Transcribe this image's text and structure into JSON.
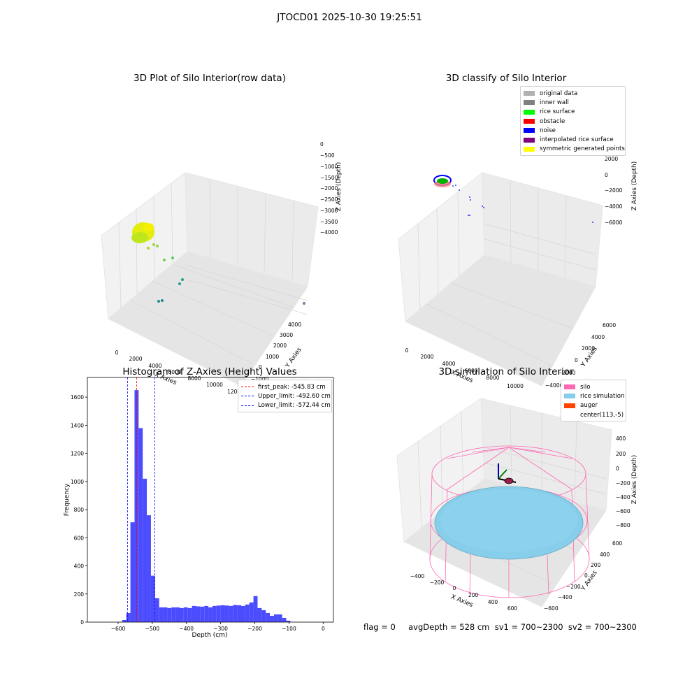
{
  "figure": {
    "suptitle": "JTOCD01 2025-10-30 19:25:51",
    "footer": "flag = 0     avgDepth = 528 cm  sv1 = 700~2300  sv2 = 700~2300"
  },
  "colors": {
    "pane": "#f2f2f2",
    "grid": "#dcdcdc",
    "hist_bar": "#4c4cff",
    "peak_line": "#ff0000",
    "limit_line": "#0000ff",
    "silo": "#ff69b4",
    "rice": "#87ceeb",
    "auger": "#ff4500",
    "yellow": "#f0f000",
    "green": "#7ed321",
    "teal": "#2a9d8f"
  },
  "panel1": {
    "title": "3D Plot of Silo Interior(row data)",
    "xlabel": "X Axies",
    "ylabel": "Y Axies",
    "zlabel": "Z Axies (Depth)",
    "xticks": [
      "0",
      "2000",
      "4000",
      "6000",
      "8000",
      "10000",
      "12000"
    ],
    "yticks": [
      "4000",
      "3000",
      "2000",
      "1000",
      "0",
      "−1000"
    ],
    "zticks": [
      "0",
      "−500",
      "−1000",
      "−1500",
      "−2000",
      "−2500",
      "−3000",
      "−3500",
      "−4000"
    ]
  },
  "panel2": {
    "title": "3D classify of Silo Interior",
    "xlabel": "X Axies",
    "ylabel": "Y Axies",
    "zlabel": "Z Axies (Depth)",
    "xticks": [
      "0",
      "2000",
      "4000",
      "6000",
      "8000",
      "10000"
    ],
    "yticks": [
      "6000",
      "4000",
      "2000",
      "0",
      "−2000",
      "−4000"
    ],
    "zticks": [
      "2000",
      "0",
      "−2000",
      "−4000",
      "−6000"
    ],
    "zticks_hidden": "4000",
    "legend": [
      {
        "label": "original data",
        "color": "#b0b0b0"
      },
      {
        "label": "inner wall",
        "color": "#808080"
      },
      {
        "label": "rice surface",
        "color": "#00ff00"
      },
      {
        "label": "obstacle",
        "color": "#ff0000"
      },
      {
        "label": "noise",
        "color": "#0000ff"
      },
      {
        "label": "interpolated rice surface",
        "color": "#800080"
      },
      {
        "label": "symmetric generated points",
        "color": "#ffff00"
      }
    ]
  },
  "panel4": {
    "title": "3D simulation of Silo Interior",
    "xlabel": "X Axies",
    "ylabel": "Y Axies",
    "zlabel": "Z Axies (Depth)",
    "xticks": [
      "−400",
      "−200",
      "0",
      "200",
      "400",
      "600"
    ],
    "yticks": [
      "600",
      "400",
      "200",
      "0",
      "−200",
      "−400",
      "−600"
    ],
    "zticks": [
      "400",
      "200",
      "0",
      "−200",
      "−400",
      "−600",
      "−800"
    ],
    "legend": [
      {
        "label": "silo",
        "color": "#ff69b4"
      },
      {
        "label": "rice simulation",
        "color": "#87ceeb"
      },
      {
        "label": "auger",
        "color": "#ff4500"
      },
      {
        "label": "center(113,-5)",
        "color": ""
      }
    ]
  },
  "chart_data": [
    {
      "type": "bar",
      "title": "Histogram of Z-Axies (Height) Values",
      "xlabel": "Depth (cm)",
      "ylabel": "Frequency",
      "xlim": [
        -690,
        30
      ],
      "ylim": [
        0,
        1740
      ],
      "xticks": [
        -600,
        -500,
        -400,
        -300,
        -200,
        -100,
        0
      ],
      "yticks": [
        0,
        200,
        400,
        600,
        800,
        1000,
        1200,
        1400,
        1600
      ],
      "bin_width": 12,
      "bin_starts": [
        -588,
        -576,
        -564,
        -552,
        -540,
        -528,
        -516,
        -504,
        -492,
        -480,
        -468,
        -456,
        -444,
        -432,
        -420,
        -408,
        -396,
        -384,
        -372,
        -360,
        -348,
        -336,
        -324,
        -312,
        -300,
        -288,
        -276,
        -264,
        -252,
        -240,
        -228,
        -216,
        -204,
        -192,
        -180,
        -168,
        -156,
        -144,
        -132,
        -120,
        -108,
        -96,
        -84,
        -72,
        -60,
        -48,
        -36,
        -24,
        -12
      ],
      "values": [
        15,
        65,
        710,
        1650,
        1380,
        1020,
        760,
        330,
        170,
        105,
        105,
        100,
        105,
        105,
        100,
        105,
        100,
        115,
        112,
        110,
        115,
        105,
        115,
        118,
        120,
        118,
        115,
        122,
        120,
        115,
        125,
        140,
        185,
        100,
        85,
        65,
        45,
        55,
        55,
        30,
        10,
        0,
        0,
        0,
        0,
        0,
        0,
        0,
        0
      ],
      "lines": [
        {
          "name": "first_peak: -545.83 cm",
          "x": -545.83,
          "color": "#ff0000"
        },
        {
          "name": "Upper_limit: -492.60 cm",
          "x": -492.6,
          "color": "#0000ff"
        },
        {
          "name": "Lower_limit: -572.44 cm",
          "x": -572.44,
          "color": "#0000ff"
        }
      ]
    }
  ]
}
